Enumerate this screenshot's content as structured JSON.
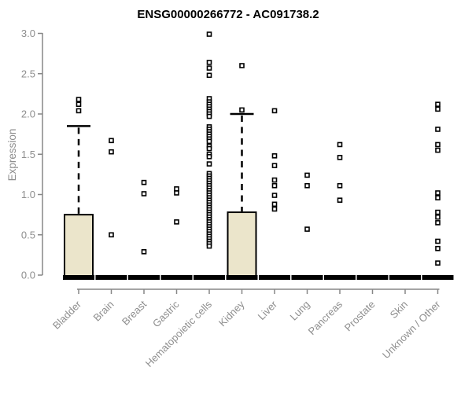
{
  "chart_data": {
    "type": "boxplot",
    "title": "ENSG00000266772 - AC091738.2",
    "ylabel": "Expression",
    "xlabel": "",
    "ylim": [
      0.0,
      3.0
    ],
    "yticks": [
      "0.0",
      "0.5",
      "1.0",
      "1.5",
      "2.0",
      "2.5",
      "3.0"
    ],
    "grid": false,
    "legend": false,
    "colors": {
      "box_fill": "#EBE5CB",
      "box_border": "#000000",
      "median": "#000000",
      "outlier_fill": "#ffffff",
      "axis": "#878787",
      "text": "#8e8e8e",
      "title": "#000000",
      "background": "#ffffff"
    },
    "categories": [
      "Bladder",
      "Brain",
      "Breast",
      "Gastric",
      "Hematopoietic cells",
      "Kidney",
      "Liver",
      "Lung",
      "Pancreas",
      "Prostate",
      "Skin",
      "Unknown / Other"
    ],
    "boxes": [
      {
        "label": "Bladder",
        "q1": 0,
        "median": 0,
        "q3": 0.75,
        "whisker_low": 0,
        "whisker_high": 1.85,
        "outliers": [
          2.18,
          2.12,
          2.04
        ]
      },
      {
        "label": "Brain",
        "q1": 0,
        "median": 0,
        "q3": 0,
        "whisker_low": 0,
        "whisker_high": 0,
        "outliers": [
          1.67,
          1.53,
          0.5
        ]
      },
      {
        "label": "Breast",
        "q1": 0,
        "median": 0,
        "q3": 0,
        "whisker_low": 0,
        "whisker_high": 0,
        "outliers": [
          1.15,
          1.01,
          0.29
        ]
      },
      {
        "label": "Gastric",
        "q1": 0,
        "median": 0,
        "q3": 0,
        "whisker_low": 0,
        "whisker_high": 0,
        "outliers": [
          1.07,
          1.02,
          0.66
        ]
      },
      {
        "label": "Hematopoietic cells",
        "q1": 0,
        "median": 0,
        "q3": 0,
        "whisker_low": 0,
        "whisker_high": 0,
        "outliers": [
          2.99,
          2.64,
          2.57,
          2.48,
          2.19,
          2.15,
          2.12,
          2.09,
          2.06,
          2.03,
          2.0,
          1.97,
          1.84,
          1.81,
          1.78,
          1.75,
          1.72,
          1.69,
          1.66,
          1.6,
          1.57,
          1.5,
          1.47,
          1.38,
          1.26,
          1.23,
          1.2,
          1.17,
          1.14,
          1.11,
          1.08,
          1.05,
          1.02,
          0.99,
          0.96,
          0.93,
          0.9,
          0.87,
          0.84,
          0.81,
          0.78,
          0.75,
          0.72,
          0.69,
          0.66,
          0.63,
          0.6,
          0.57,
          0.54,
          0.51,
          0.48,
          0.45,
          0.42,
          0.39,
          0.36
        ]
      },
      {
        "label": "Kidney",
        "q1": 0,
        "median": 0,
        "q3": 0.78,
        "whisker_low": 0,
        "whisker_high": 2.0,
        "outliers": [
          2.6,
          2.05
        ]
      },
      {
        "label": "Liver",
        "q1": 0,
        "median": 0,
        "q3": 0,
        "whisker_low": 0,
        "whisker_high": 0,
        "outliers": [
          2.04,
          1.48,
          1.36,
          1.18,
          1.11,
          0.99,
          0.88,
          0.82
        ]
      },
      {
        "label": "Lung",
        "q1": 0,
        "median": 0,
        "q3": 0,
        "whisker_low": 0,
        "whisker_high": 0,
        "outliers": [
          1.24,
          1.11,
          0.57
        ]
      },
      {
        "label": "Pancreas",
        "q1": 0,
        "median": 0,
        "q3": 0,
        "whisker_low": 0,
        "whisker_high": 0,
        "outliers": [
          1.62,
          1.46,
          1.11,
          0.93
        ]
      },
      {
        "label": "Prostate",
        "q1": 0,
        "median": 0,
        "q3": 0,
        "whisker_low": 0,
        "whisker_high": 0,
        "outliers": []
      },
      {
        "label": "Skin",
        "q1": 0,
        "median": 0,
        "q3": 0,
        "whisker_low": 0,
        "whisker_high": 0,
        "outliers": []
      },
      {
        "label": "Unknown / Other",
        "q1": 0,
        "median": 0,
        "q3": 0,
        "whisker_low": 0,
        "whisker_high": 0,
        "outliers": [
          2.12,
          2.06,
          1.81,
          1.62,
          1.55,
          1.02,
          0.96,
          0.78,
          0.72,
          0.65,
          0.42,
          0.33,
          0.15
        ]
      }
    ]
  }
}
